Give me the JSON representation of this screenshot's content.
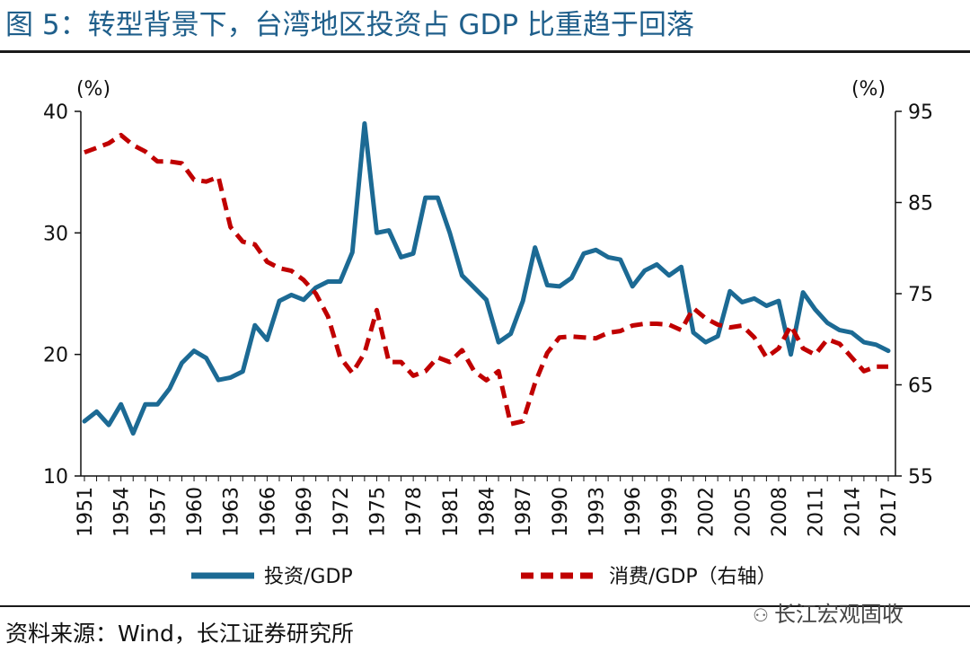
{
  "title": "图 5：转型背景下，台湾地区投资占 GDP 比重趋于回落",
  "source": "资料来源：Wind，长江证券研究所",
  "watermark": "长江宏观固收",
  "chart_data": {
    "type": "line",
    "title": "图 5：转型背景下，台湾地区投资占 GDP 比重趋于回落",
    "y_left_label": "(%)",
    "y_right_label": "(%)",
    "y_left_range": [
      10,
      40
    ],
    "y_left_ticks": [
      10,
      20,
      30,
      40
    ],
    "y_right_range": [
      55,
      95
    ],
    "y_right_ticks": [
      55,
      65,
      75,
      85,
      95
    ],
    "x_tick_labels": [
      "1951",
      "1954",
      "1957",
      "1960",
      "1963",
      "1966",
      "1969",
      "1972",
      "1975",
      "1978",
      "1981",
      "1984",
      "1987",
      "1990",
      "1993",
      "1996",
      "1999",
      "2002",
      "2005",
      "2008",
      "2011",
      "2014",
      "2017"
    ],
    "x": [
      1951,
      1952,
      1953,
      1954,
      1955,
      1956,
      1957,
      1958,
      1959,
      1960,
      1961,
      1962,
      1963,
      1964,
      1965,
      1966,
      1967,
      1968,
      1969,
      1970,
      1971,
      1972,
      1973,
      1974,
      1975,
      1976,
      1977,
      1978,
      1979,
      1980,
      1981,
      1982,
      1983,
      1984,
      1985,
      1986,
      1987,
      1988,
      1989,
      1990,
      1991,
      1992,
      1993,
      1994,
      1995,
      1996,
      1997,
      1998,
      1999,
      2000,
      2001,
      2002,
      2003,
      2004,
      2005,
      2006,
      2007,
      2008,
      2009,
      2010,
      2011,
      2012,
      2013,
      2014,
      2015,
      2016,
      2017
    ],
    "grid": false,
    "legend_position": "bottom",
    "series": [
      {
        "name": "投资/GDP",
        "axis": "left",
        "color": "#1c6a94",
        "style": "solid",
        "values": [
          14.5,
          15.3,
          14.2,
          15.9,
          13.5,
          15.9,
          15.9,
          17.2,
          19.3,
          20.3,
          19.7,
          17.9,
          18.1,
          18.6,
          22.4,
          21.2,
          24.4,
          24.9,
          24.5,
          25.5,
          26.0,
          26.0,
          28.4,
          39.0,
          30.0,
          30.2,
          28.0,
          28.3,
          32.9,
          32.9,
          30.0,
          26.5,
          25.5,
          24.5,
          21.0,
          21.7,
          24.4,
          28.8,
          25.7,
          25.6,
          26.3,
          28.3,
          28.6,
          28.0,
          27.8,
          25.6,
          26.9,
          27.4,
          26.5,
          27.2,
          21.8,
          21.0,
          21.5,
          25.2,
          24.3,
          24.6,
          24.0,
          24.4,
          20.0,
          25.1,
          23.7,
          22.6,
          22.0,
          21.8,
          21.0,
          20.8,
          20.3
        ]
      },
      {
        "name": "消费/GDP（右轴）",
        "axis": "right",
        "color": "#c00000",
        "style": "dashed",
        "values": [
          90.5,
          91.0,
          91.5,
          92.4,
          91.3,
          90.6,
          89.5,
          89.5,
          89.3,
          87.5,
          87.3,
          87.8,
          82.3,
          80.7,
          80.4,
          78.5,
          77.8,
          77.5,
          76.5,
          75.0,
          72.5,
          68.0,
          66.3,
          68.5,
          73.2,
          67.5,
          67.5,
          66.0,
          66.5,
          68.0,
          67.5,
          68.8,
          66.5,
          65.5,
          66.5,
          60.7,
          61.0,
          65.2,
          68.5,
          70.2,
          70.3,
          70.2,
          70.1,
          70.7,
          70.9,
          71.5,
          71.7,
          71.7,
          71.6,
          71.0,
          73.4,
          72.3,
          71.6,
          71.3,
          71.5,
          70.2,
          68.0,
          69.0,
          71.5,
          69.0,
          68.3,
          70.0,
          69.5,
          68.0,
          66.5,
          67.0,
          67.0
        ]
      }
    ]
  }
}
